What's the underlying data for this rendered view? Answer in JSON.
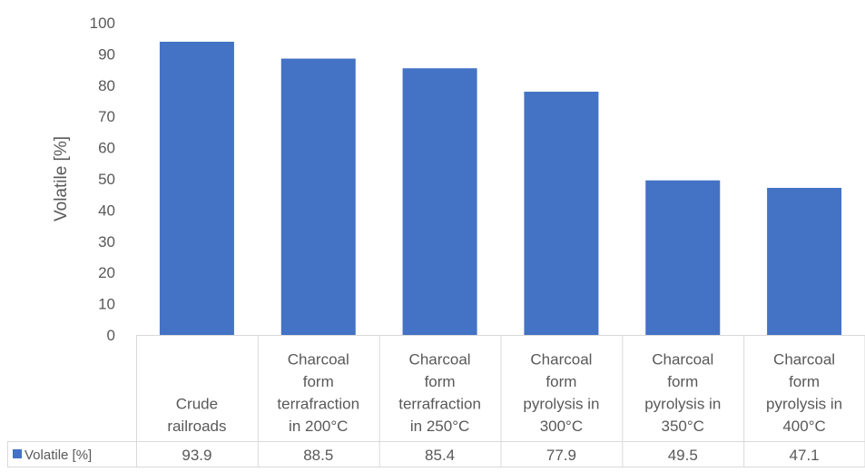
{
  "chart_data": {
    "type": "bar",
    "title": "",
    "xlabel": "",
    "ylabel": "Volatile [%]",
    "ylim": [
      0,
      100
    ],
    "yticks": [
      0,
      10,
      20,
      30,
      40,
      50,
      60,
      70,
      80,
      90,
      100
    ],
    "grid": false,
    "legend": "bottom-left (data table)",
    "categories": [
      [
        "Crude",
        "railroads"
      ],
      [
        "Charcoal",
        "form",
        "terrafraction",
        "in 200°C"
      ],
      [
        "Charcoal",
        "form",
        "terrafraction",
        "in 250°C"
      ],
      [
        "Charcoal",
        "form",
        "pyrolysis in",
        "300°C"
      ],
      [
        "Charcoal",
        "form",
        "pyrolysis in",
        "350°C"
      ],
      [
        "Charcoal",
        "form",
        "pyrolysis in",
        "400°C"
      ]
    ],
    "series": [
      {
        "name": "Volatile [%]",
        "color": "#4472C4",
        "values": [
          93.9,
          88.5,
          85.4,
          77.9,
          49.5,
          47.1
        ]
      }
    ]
  }
}
